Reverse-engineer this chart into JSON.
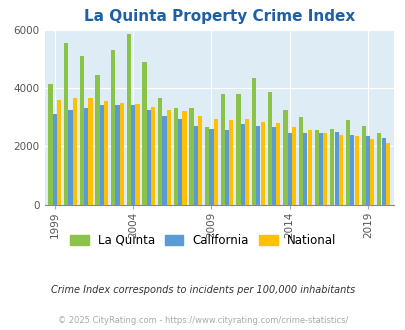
{
  "title": "La Quinta Property Crime Index",
  "subtitle": "Crime Index corresponds to incidents per 100,000 inhabitants",
  "footer": "© 2025 CityRating.com - https://www.cityrating.com/crime-statistics/",
  "years": [
    1999,
    2000,
    2001,
    2002,
    2003,
    2004,
    2005,
    2006,
    2007,
    2008,
    2009,
    2010,
    2011,
    2012,
    2013,
    2014,
    2015,
    2016,
    2017,
    2018,
    2019,
    2020
  ],
  "la_quinta": [
    4150,
    5550,
    5100,
    4450,
    5300,
    5850,
    4900,
    3650,
    3300,
    3300,
    2650,
    3800,
    3800,
    4350,
    3850,
    3250,
    3000,
    2550,
    2600,
    2900,
    2700,
    2450
  ],
  "california": [
    3100,
    3250,
    3300,
    3400,
    3400,
    3400,
    3250,
    3050,
    2950,
    2700,
    2600,
    2550,
    2750,
    2700,
    2650,
    2450,
    2450,
    2450,
    2500,
    2400,
    2350,
    2300
  ],
  "national": [
    3600,
    3650,
    3650,
    3550,
    3500,
    3450,
    3350,
    3250,
    3200,
    3050,
    2950,
    2900,
    2950,
    2850,
    2800,
    2650,
    2550,
    2450,
    2400,
    2350,
    2250,
    2100
  ],
  "color_lq": "#8bc34a",
  "color_ca": "#5b9bd5",
  "color_na": "#ffc000",
  "bg_color": "#deedf5",
  "ylim": [
    0,
    6000
  ],
  "yticks": [
    0,
    2000,
    4000,
    6000
  ],
  "xlabel_ticks": [
    1999,
    2004,
    2009,
    2014,
    2019
  ],
  "title_color": "#1f5fa6",
  "subtitle_color": "#333333",
  "footer_color": "#aaaaaa"
}
